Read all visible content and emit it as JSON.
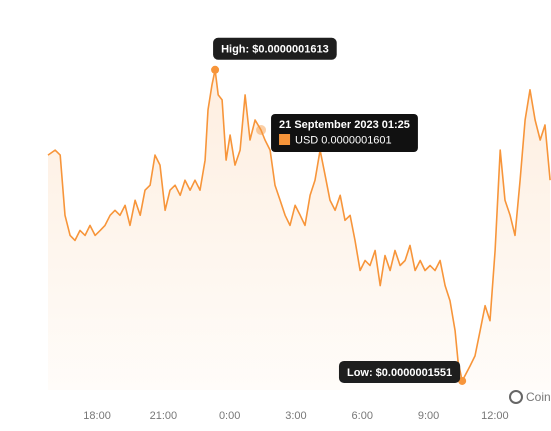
{
  "chart_data": {
    "type": "area",
    "series": [
      {
        "name": "USD",
        "color": "#f7953a",
        "x": [
          15.78,
          16.1,
          16.33,
          16.55,
          16.78,
          17.0,
          17.23,
          17.46,
          17.68,
          17.91,
          18.14,
          18.36,
          18.59,
          18.81,
          19.04,
          19.27,
          19.49,
          19.72,
          19.95,
          20.17,
          20.4,
          20.62,
          20.85,
          21.08,
          21.3,
          21.53,
          21.76,
          21.98,
          22.21,
          22.43,
          22.66,
          22.89,
          23.02,
          23.2,
          23.34,
          23.48,
          23.66,
          23.84,
          24.02,
          24.24,
          24.47,
          24.7,
          24.92,
          25.15,
          25.42,
          25.6,
          25.83,
          26.05,
          26.28,
          26.51,
          26.73,
          26.96,
          27.19,
          27.41,
          27.64,
          27.86,
          28.09,
          28.32,
          28.54,
          28.77,
          29.0,
          29.22,
          29.45,
          29.67,
          29.9,
          30.13,
          30.35,
          30.58,
          30.81,
          31.03,
          31.26,
          31.48,
          31.71,
          31.94,
          32.16,
          32.39,
          32.62,
          32.84,
          33.07,
          33.29,
          33.52,
          33.75,
          33.97,
          34.2,
          34.33,
          34.52,
          34.88,
          35.1,
          35.33,
          35.56,
          35.78,
          36.01,
          36.24,
          36.46,
          36.69,
          36.91,
          37.14,
          37.37,
          37.59,
          37.82,
          38.05,
          38.27,
          38.5
        ],
        "values": [
          1.596e-07,
          1.597e-07,
          1.596e-07,
          1.584e-07,
          1.58e-07,
          1.579e-07,
          1.581e-07,
          1.58e-07,
          1.582e-07,
          1.58e-07,
          1.581e-07,
          1.582e-07,
          1.584e-07,
          1.585e-07,
          1.584e-07,
          1.586e-07,
          1.582e-07,
          1.587e-07,
          1.584e-07,
          1.589e-07,
          1.59e-07,
          1.596e-07,
          1.594e-07,
          1.585e-07,
          1.589e-07,
          1.59e-07,
          1.588e-07,
          1.591e-07,
          1.589e-07,
          1.591e-07,
          1.589e-07,
          1.595e-07,
          1.605e-07,
          1.61e-07,
          1.613e-07,
          1.608e-07,
          1.607e-07,
          1.595e-07,
          1.6e-07,
          1.594e-07,
          1.597e-07,
          1.608e-07,
          1.599e-07,
          1.603e-07,
          1.601e-07,
          1.599e-07,
          1.597e-07,
          1.59e-07,
          1.587e-07,
          1.584e-07,
          1.582e-07,
          1.586e-07,
          1.584e-07,
          1.582e-07,
          1.588e-07,
          1.591e-07,
          1.597e-07,
          1.592e-07,
          1.587e-07,
          1.585e-07,
          1.588e-07,
          1.583e-07,
          1.584e-07,
          1.579e-07,
          1.573e-07,
          1.575e-07,
          1.574e-07,
          1.577e-07,
          1.57e-07,
          1.576e-07,
          1.573e-07,
          1.577e-07,
          1.574e-07,
          1.575e-07,
          1.578e-07,
          1.573e-07,
          1.575e-07,
          1.573e-07,
          1.574e-07,
          1.573e-07,
          1.575e-07,
          1.57e-07,
          1.567e-07,
          1.561e-07,
          1.555e-07,
          1.551e-07,
          1.554e-07,
          1.556e-07,
          1.561e-07,
          1.566e-07,
          1.563e-07,
          1.577e-07,
          1.597e-07,
          1.587e-07,
          1.584e-07,
          1.58e-07,
          1.591e-07,
          1.603e-07,
          1.609e-07,
          1.603e-07,
          1.599e-07,
          1.602e-07,
          1.591e-07
        ]
      }
    ],
    "xlim": [
      15.78,
      38.54
    ],
    "xticks": [
      {
        "value": 18,
        "label": "18:00"
      },
      {
        "value": 21,
        "label": "21:00"
      },
      {
        "value": 24,
        "label": "0:00"
      },
      {
        "value": 27,
        "label": "3:00"
      },
      {
        "value": 30,
        "label": "6:00"
      },
      {
        "value": 33,
        "label": "9:00"
      },
      {
        "value": 36,
        "label": "12:00"
      }
    ],
    "ylim": [
      1.5492e-07,
      1.6269e-07
    ],
    "annotations": [
      {
        "text": "High: $0.0000001613",
        "x": 23.34,
        "value": 1.613e-07,
        "position": "above"
      },
      {
        "text": "Low: $0.0000001551",
        "x": 34.52,
        "value": 1.551e-07,
        "position": "left"
      }
    ],
    "tooltip": {
      "title": "21 September 2023 01:25",
      "text": "USD 0.0000001601",
      "x": 25.42,
      "value": 1.601e-07
    },
    "watermark": "Coin"
  }
}
